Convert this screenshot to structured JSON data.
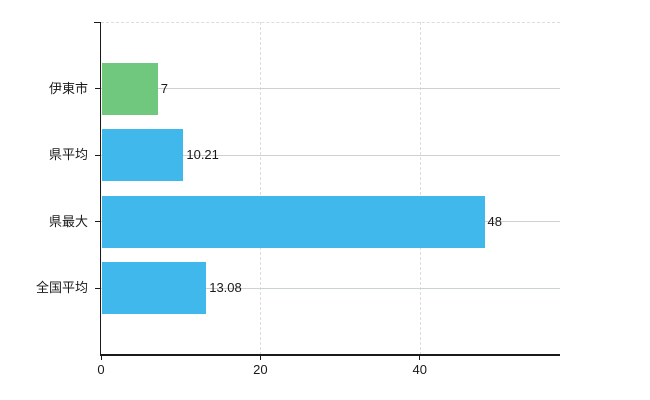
{
  "chart_data": {
    "type": "bar",
    "orientation": "horizontal",
    "title": "",
    "xlabel": "",
    "ylabel": "",
    "categories": [
      "伊東市",
      "県平均",
      "県最大",
      "全国平均"
    ],
    "values": [
      7,
      10.21,
      48,
      13.08
    ],
    "value_labels": [
      "7",
      "10.21",
      "48",
      "13.08"
    ],
    "bar_colors": [
      "#6fc87d",
      "#40b8ec",
      "#40b8ec",
      "#40b8ec"
    ],
    "x_ticks": [
      0,
      20,
      40
    ],
    "x_tick_labels": [
      "0",
      "20",
      "40"
    ],
    "xlim": [
      0,
      57.6
    ],
    "grid": true,
    "legend": false,
    "colors": {
      "axis": "#1a1a1a",
      "row_line": "#ccd3cc",
      "dashed_grid": "#dcdcdc",
      "text": "#1a1a1a",
      "background": "#ffffff"
    }
  }
}
